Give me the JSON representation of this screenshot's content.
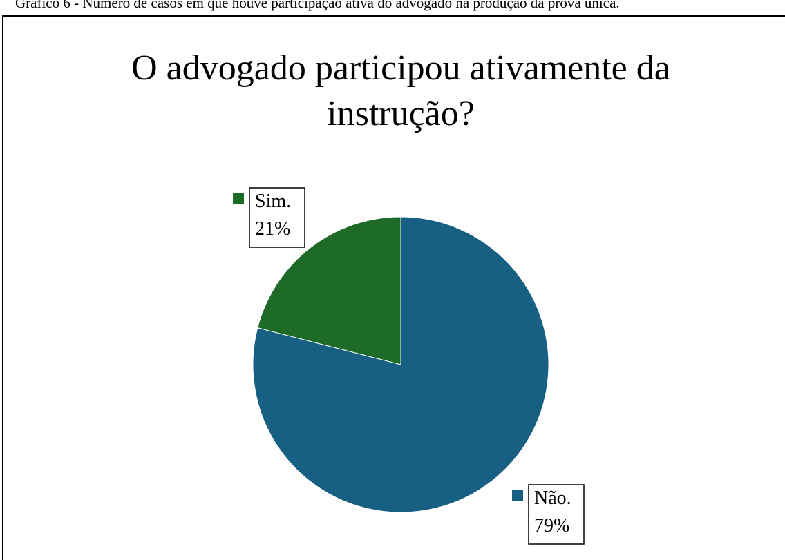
{
  "caption": "Gráfico 6 - Número de casos em que houve participação ativa do advogado na produção da prova única.",
  "chart_data": {
    "type": "pie",
    "title": "O advogado participou ativamente da instrução?",
    "categories": [
      "Sim.",
      "Não."
    ],
    "values": [
      21,
      79
    ],
    "value_labels": [
      "21%",
      "79%"
    ],
    "colors": [
      "#1e6b27",
      "#186083"
    ]
  }
}
